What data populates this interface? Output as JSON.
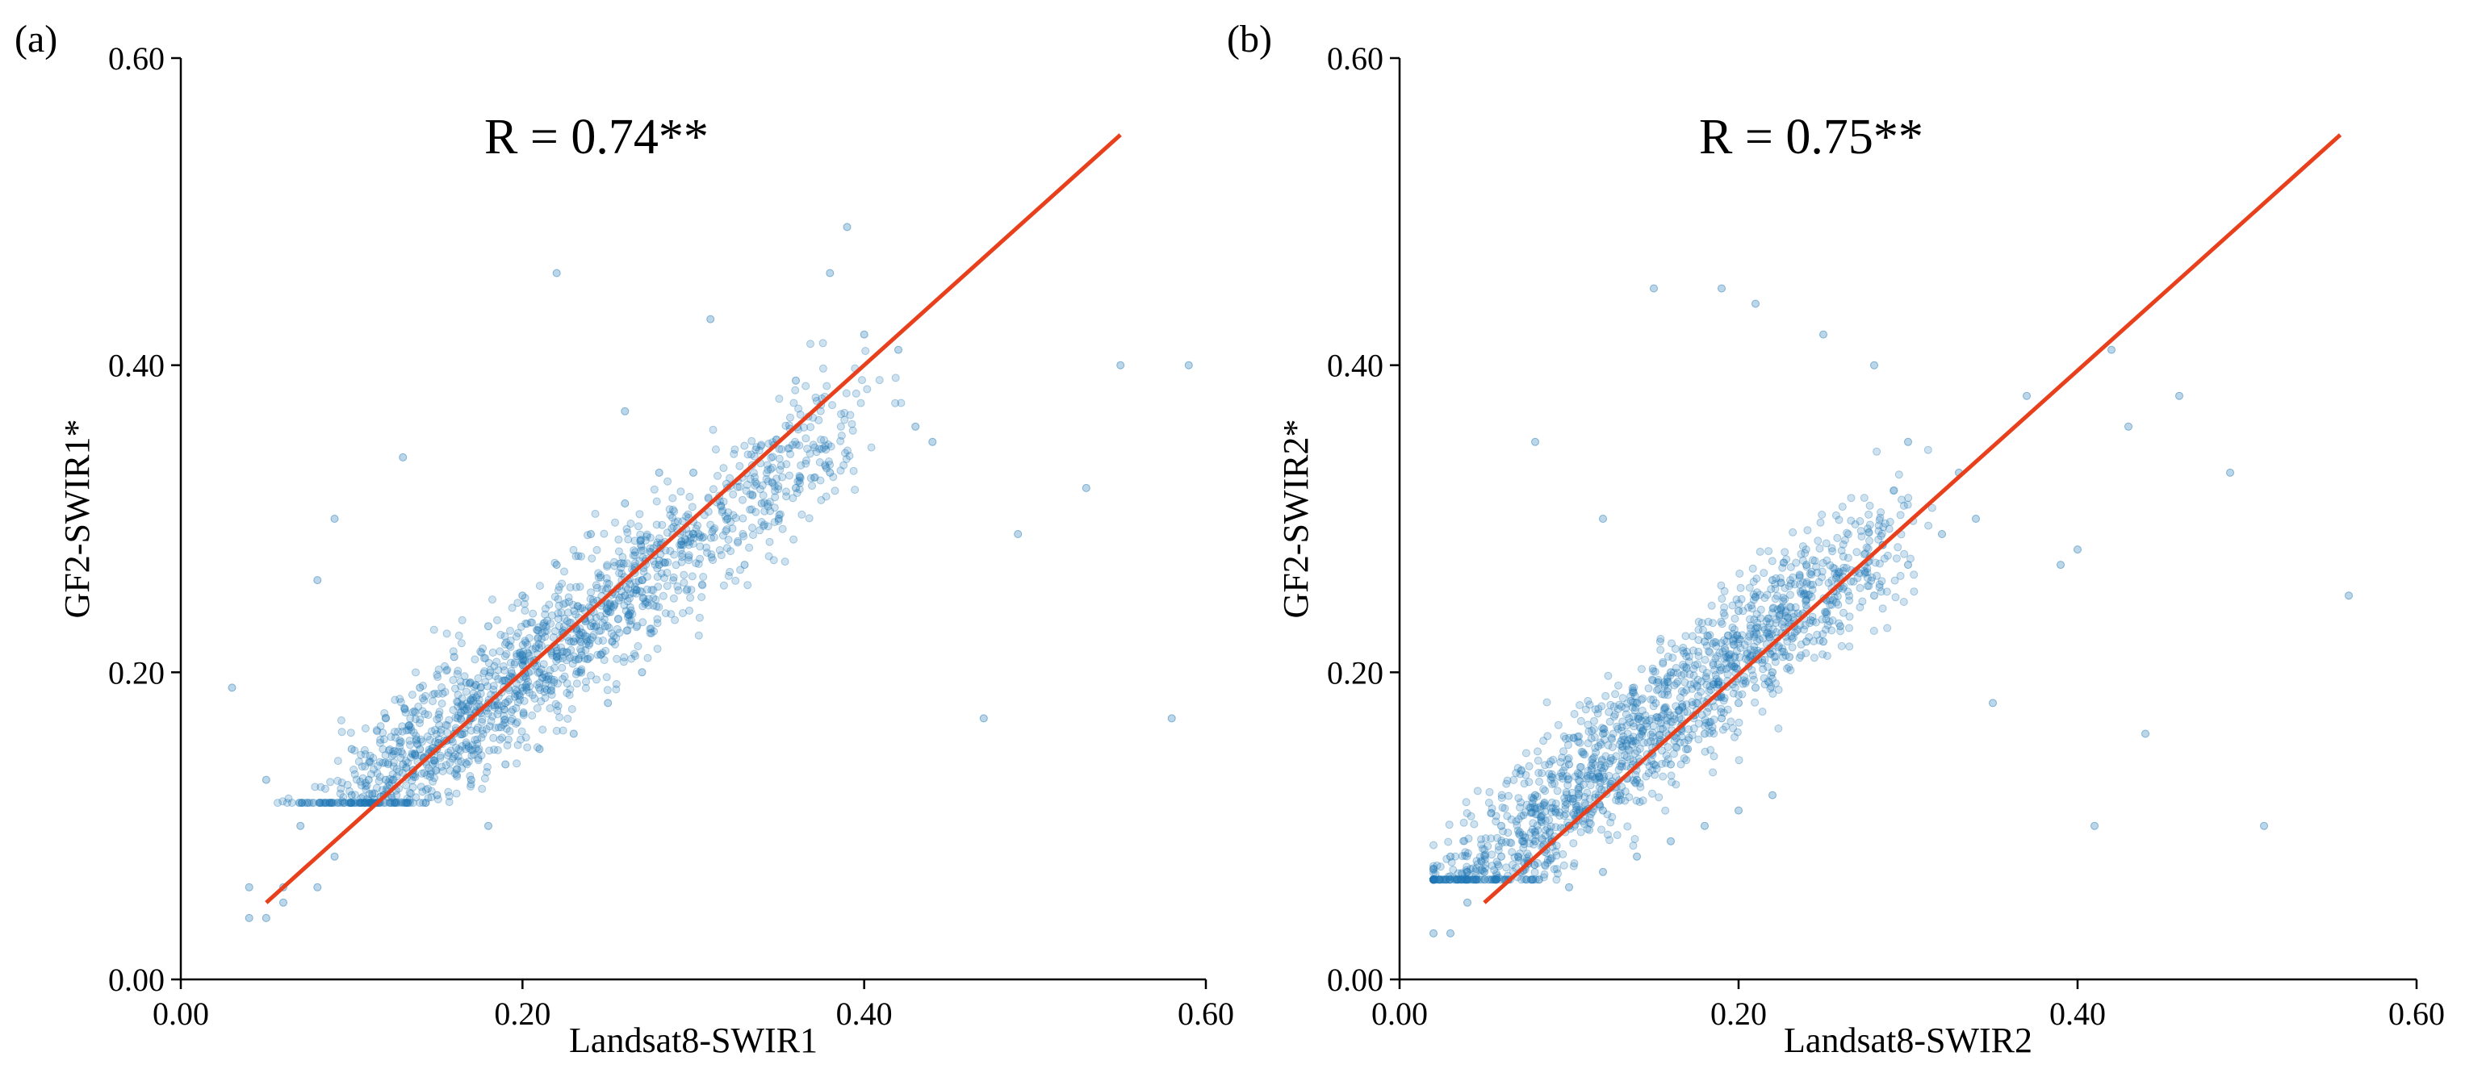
{
  "chart_data": [
    {
      "type": "scatter",
      "panel_label": "(a)",
      "annotation": "R = 0.74**",
      "xlabel": "Landsat8-SWIR1",
      "ylabel": "GF2-SWIR1*",
      "xlim": [
        0.0,
        0.6
      ],
      "ylim": [
        0.0,
        0.6
      ],
      "xticks": [
        "0.00",
        "0.20",
        "0.40",
        "0.60"
      ],
      "yticks": [
        "0.00",
        "0.20",
        "0.40",
        "0.60"
      ],
      "grid": false,
      "point_color": "#1f77b4",
      "fit_line": {
        "x": [
          0.05,
          0.55
        ],
        "y": [
          0.05,
          0.55
        ],
        "color": "#e8401c"
      },
      "series": [
        {
          "name": "samples",
          "x": [
            0.1,
            0.11,
            0.12,
            0.13,
            0.14,
            0.15,
            0.16,
            0.17,
            0.18,
            0.19,
            0.2,
            0.21,
            0.22,
            0.23,
            0.24,
            0.25,
            0.26,
            0.27,
            0.28,
            0.3,
            0.32,
            0.34,
            0.36,
            0.38,
            0.1,
            0.12,
            0.14,
            0.16,
            0.18,
            0.2,
            0.22,
            0.24,
            0.26,
            0.28,
            0.3,
            0.15,
            0.17,
            0.19,
            0.21,
            0.23,
            0.25,
            0.27,
            0.03,
            0.04,
            0.04,
            0.05,
            0.06,
            0.08,
            0.07,
            0.09,
            0.39,
            0.4,
            0.42,
            0.43,
            0.44,
            0.47,
            0.49,
            0.55,
            0.58,
            0.53,
            0.59,
            0.36,
            0.38,
            0.22,
            0.31,
            0.35,
            0.13,
            0.09,
            0.26,
            0.33,
            0.18,
            0.08,
            0.05,
            0.06
          ],
          "y": [
            0.12,
            0.13,
            0.13,
            0.14,
            0.15,
            0.15,
            0.16,
            0.17,
            0.18,
            0.18,
            0.19,
            0.2,
            0.21,
            0.22,
            0.23,
            0.24,
            0.25,
            0.26,
            0.27,
            0.29,
            0.3,
            0.31,
            0.32,
            0.33,
            0.15,
            0.17,
            0.19,
            0.21,
            0.23,
            0.25,
            0.27,
            0.29,
            0.31,
            0.33,
            0.33,
            0.12,
            0.13,
            0.14,
            0.15,
            0.16,
            0.18,
            0.2,
            0.19,
            0.06,
            0.04,
            0.04,
            0.05,
            0.06,
            0.1,
            0.08,
            0.49,
            0.42,
            0.41,
            0.36,
            0.35,
            0.17,
            0.29,
            0.4,
            0.17,
            0.32,
            0.4,
            0.39,
            0.46,
            0.46,
            0.43,
            0.3,
            0.34,
            0.3,
            0.37,
            0.27,
            0.1,
            0.26,
            0.13,
            0.06
          ]
        }
      ]
    },
    {
      "type": "scatter",
      "panel_label": "(b)",
      "annotation": "R = 0.75**",
      "xlabel": "Landsat8-SWIR2",
      "ylabel": "GF2-SWIR2*",
      "xlim": [
        0.0,
        0.6
      ],
      "ylim": [
        0.0,
        0.6
      ],
      "xticks": [
        "0.00",
        "0.20",
        "0.40",
        "0.60"
      ],
      "yticks": [
        "0.00",
        "0.20",
        "0.40",
        "0.60"
      ],
      "grid": false,
      "point_color": "#1f77b4",
      "fit_line": {
        "x": [
          0.05,
          0.555
        ],
        "y": [
          0.05,
          0.55
        ],
        "color": "#e8401c"
      },
      "series": [
        {
          "name": "samples",
          "x": [
            0.04,
            0.05,
            0.06,
            0.07,
            0.08,
            0.09,
            0.1,
            0.11,
            0.12,
            0.13,
            0.14,
            0.15,
            0.16,
            0.17,
            0.18,
            0.19,
            0.2,
            0.21,
            0.22,
            0.23,
            0.24,
            0.25,
            0.26,
            0.28,
            0.3,
            0.32,
            0.34,
            0.06,
            0.08,
            0.1,
            0.12,
            0.14,
            0.16,
            0.18,
            0.2,
            0.22,
            0.24,
            0.1,
            0.12,
            0.14,
            0.16,
            0.18,
            0.2,
            0.22,
            0.02,
            0.03,
            0.03,
            0.04,
            0.37,
            0.4,
            0.42,
            0.43,
            0.46,
            0.49,
            0.51,
            0.56,
            0.39,
            0.41,
            0.44,
            0.15,
            0.19,
            0.21,
            0.28,
            0.3,
            0.35,
            0.08,
            0.12,
            0.25,
            0.33
          ],
          "y": [
            0.07,
            0.07,
            0.08,
            0.08,
            0.09,
            0.09,
            0.1,
            0.11,
            0.11,
            0.12,
            0.13,
            0.14,
            0.14,
            0.15,
            0.16,
            0.17,
            0.18,
            0.19,
            0.2,
            0.21,
            0.22,
            0.22,
            0.23,
            0.25,
            0.27,
            0.29,
            0.3,
            0.1,
            0.12,
            0.14,
            0.16,
            0.18,
            0.2,
            0.22,
            0.24,
            0.26,
            0.27,
            0.06,
            0.07,
            0.08,
            0.09,
            0.1,
            0.11,
            0.12,
            0.03,
            0.03,
            0.08,
            0.05,
            0.38,
            0.28,
            0.41,
            0.36,
            0.38,
            0.33,
            0.1,
            0.25,
            0.27,
            0.1,
            0.16,
            0.45,
            0.45,
            0.44,
            0.4,
            0.35,
            0.18,
            0.35,
            0.3,
            0.42,
            0.33
          ]
        }
      ]
    }
  ]
}
